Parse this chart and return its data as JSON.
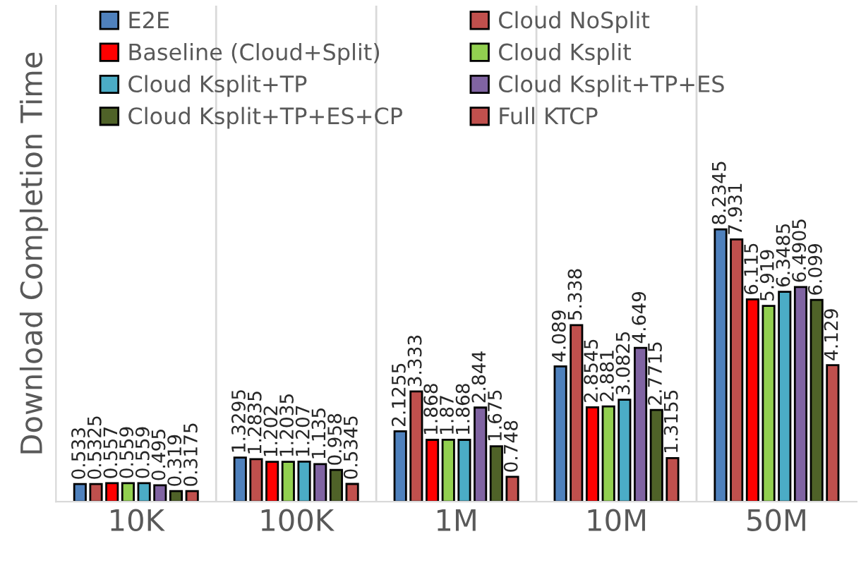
{
  "chart_data": {
    "type": "bar",
    "ylabel": "Download Completion Time",
    "categories": [
      "10K",
      "100K",
      "1M",
      "10M",
      "50M"
    ],
    "ylim": [
      0,
      15
    ],
    "data_labels": true,
    "grid": "x",
    "legend": "top left",
    "tick_labels": "x",
    "series": [
      {
        "name": "E2E",
        "color": "#4f81bd",
        "values": [
          0.533,
          1.3295,
          2.1255,
          4.089,
          8.2345
        ]
      },
      {
        "name": "Cloud NoSplit",
        "color": "#c0504d",
        "values": [
          0.5325,
          1.2835,
          3.333,
          5.338,
          7.931
        ]
      },
      {
        "name": "Baseline (Cloud+Split)",
        "color": "#ff0000",
        "values": [
          0.557,
          1.202,
          1.868,
          2.8545,
          6.115
        ]
      },
      {
        "name": "Cloud Ksplit",
        "color": "#92d050",
        "values": [
          0.559,
          1.2035,
          1.87,
          2.881,
          5.919
        ]
      },
      {
        "name": "Cloud Ksplit+TP",
        "color": "#4bacc6",
        "values": [
          0.559,
          1.207,
          1.868,
          3.0825,
          6.3485
        ]
      },
      {
        "name": "Cloud Ksplit+TP+ES",
        "color": "#8064a2",
        "values": [
          0.495,
          1.135,
          2.844,
          4.649,
          6.4905
        ]
      },
      {
        "name": "Cloud Ksplit+TP+ES+CP",
        "color": "#4f6228",
        "values": [
          0.319,
          0.958,
          1.675,
          2.7715,
          6.099
        ]
      },
      {
        "name": "Full KTCP",
        "color": "#c0504d",
        "values": [
          0.3175,
          0.5345,
          0.748,
          1.3155,
          4.129
        ]
      }
    ]
  }
}
